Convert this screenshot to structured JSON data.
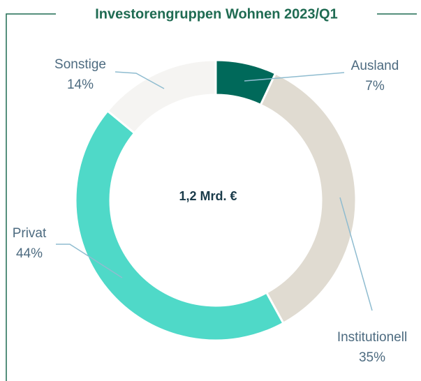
{
  "chart_data": {
    "type": "donut",
    "title": "Investorengruppen Wohnen 2023/Q1",
    "center_label": "1,2 Mrd. €",
    "categories": [
      "Ausland",
      "Institutionell",
      "Privat",
      "Sonstige"
    ],
    "values": [
      7,
      35,
      44,
      14
    ],
    "value_labels": [
      "7%",
      "35%",
      "44%",
      "14%"
    ],
    "colors": [
      "#00695a",
      "#e0dbd1",
      "#4fd9c8",
      "#f5f4f2"
    ]
  }
}
